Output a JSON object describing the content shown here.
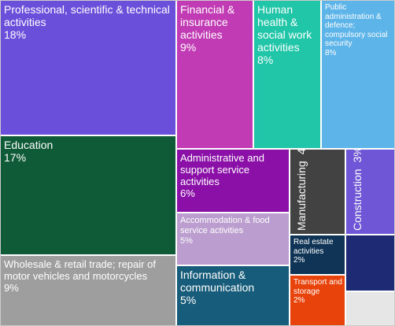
{
  "chart_data": {
    "type": "treemap",
    "title": "",
    "items": [
      {
        "label": "Professional, scientific & technical activities",
        "value": "18%",
        "color": "#6a4fdb"
      },
      {
        "label": "Education",
        "value": "17%",
        "color": "#0f5b38"
      },
      {
        "label": "Wholesale & retail trade; repair of motor vehicles and motorcycles",
        "value": "9%",
        "color": "#9e9e9e"
      },
      {
        "label": "Financial & insurance activities",
        "value": "9%",
        "color": "#c13cb4"
      },
      {
        "label": "Human health & social work activities",
        "value": "8%",
        "color": "#21c5a8"
      },
      {
        "label": "Public administration & defence; compulsory social security",
        "value": "8%",
        "color": "#5db4e9"
      },
      {
        "label": "Administrative and support service activities",
        "value": "6%",
        "color": "#8a10a8"
      },
      {
        "label": "Accommodation & food service activities",
        "value": "5%",
        "color": "#bb9ecf"
      },
      {
        "label": "Information & communication",
        "value": "5%",
        "color": "#175c7a"
      },
      {
        "label": "Manufacturing",
        "value": "4%",
        "color": "#424242"
      },
      {
        "label": "Construction",
        "value": "3%",
        "color": "#6f56d6"
      },
      {
        "label": "Real estate activities",
        "value": "2%",
        "color": "#0f3455"
      },
      {
        "label": "Transport and storage",
        "value": "2%",
        "color": "#e8430a"
      },
      {
        "label": "",
        "value": "",
        "color": "#1e2a73"
      },
      {
        "label": "",
        "value": "",
        "color": "#e6e6e6"
      }
    ]
  }
}
